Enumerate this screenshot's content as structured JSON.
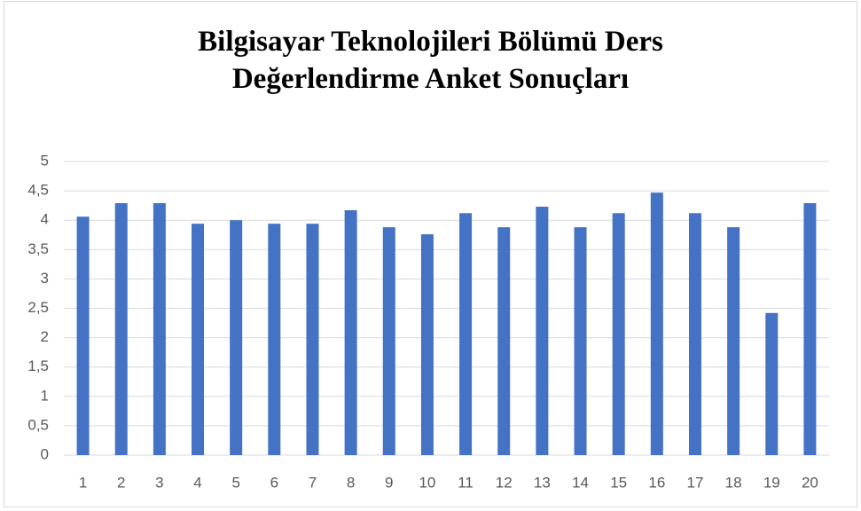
{
  "chart_data": {
    "type": "bar",
    "title": "Bilgisayar Teknolojileri Bölümü Ders Değerlendirme Anket Sonuçları",
    "categories": [
      "1",
      "2",
      "3",
      "4",
      "5",
      "6",
      "7",
      "8",
      "9",
      "10",
      "11",
      "12",
      "13",
      "14",
      "15",
      "16",
      "17",
      "18",
      "19",
      "20"
    ],
    "values": [
      4.06,
      4.29,
      4.29,
      3.94,
      4.0,
      3.94,
      3.94,
      4.17,
      3.88,
      3.76,
      4.12,
      3.88,
      4.23,
      3.88,
      4.12,
      4.47,
      4.12,
      3.88,
      2.42,
      4.29
    ],
    "color": "#4472c4",
    "ylim": [
      0,
      5
    ],
    "yticks": [
      0,
      {
        "value": 0.5,
        "label": "0,5"
      },
      1,
      {
        "value": 1.5,
        "label": "1,5"
      },
      2,
      {
        "value": 2.5,
        "label": "2,5"
      },
      3,
      {
        "value": 3.5,
        "label": "3,5"
      },
      4,
      {
        "value": 4.5,
        "label": "4,5"
      },
      5
    ],
    "grid": true
  }
}
